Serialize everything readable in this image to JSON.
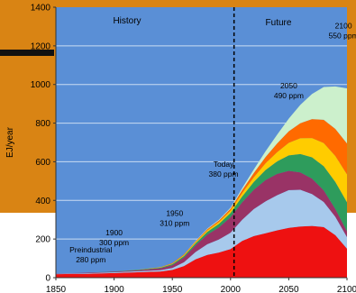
{
  "chart_data": {
    "type": "area",
    "ylabel": "EJ/year",
    "ylim": [
      0,
      1400
    ],
    "xlim": [
      1850,
      2100
    ],
    "x_ticks": [
      "1850",
      "1900",
      "1950",
      "2000",
      "2050",
      "2100"
    ],
    "y_ticks": [
      "0",
      "200",
      "400",
      "600",
      "800",
      "1000",
      "1200",
      "1400"
    ],
    "grid": true,
    "divider": 2003,
    "regions": [
      {
        "label": "History"
      },
      {
        "label": "Future"
      }
    ],
    "x": [
      1850,
      1875,
      1900,
      1920,
      1940,
      1950,
      1960,
      1970,
      1980,
      1990,
      2000,
      2010,
      2020,
      2030,
      2040,
      2050,
      2060,
      2070,
      2080,
      2090,
      2100
    ],
    "series": [
      {
        "color": "#ee1111",
        "values": [
          18,
          20,
          24,
          28,
          32,
          40,
          60,
          95,
          118,
          130,
          148,
          190,
          215,
          230,
          245,
          258,
          265,
          268,
          262,
          220,
          150
        ]
      },
      {
        "color": "#a7c9ec",
        "values": [
          2,
          3,
          4,
          5,
          7,
          10,
          20,
          38,
          55,
          68,
          85,
          110,
          140,
          165,
          182,
          195,
          190,
          165,
          130,
          95,
          60
        ]
      },
      {
        "color": "#993366",
        "values": [
          1,
          2,
          3,
          5,
          10,
          15,
          25,
          35,
          50,
          62,
          80,
          90,
          100,
          110,
          110,
          100,
          90,
          80,
          60,
          40,
          30
        ]
      },
      {
        "color": "#2e9c5c",
        "values": [
          0,
          0,
          1,
          2,
          3,
          5,
          7,
          10,
          14,
          18,
          22,
          30,
          40,
          52,
          65,
          80,
          95,
          110,
          125,
          140,
          150
        ]
      },
      {
        "color": "#ffcc00",
        "values": [
          0,
          0,
          0,
          1,
          2,
          3,
          5,
          6,
          8,
          10,
          12,
          18,
          25,
          35,
          48,
          65,
          82,
          100,
          120,
          135,
          145
        ]
      },
      {
        "color": "#ff6a00",
        "values": [
          0,
          0,
          0,
          0,
          1,
          2,
          3,
          4,
          6,
          8,
          10,
          15,
          22,
          32,
          45,
          60,
          78,
          98,
          120,
          140,
          160
        ]
      },
      {
        "color": "#ccf0cc",
        "values": [
          0,
          0,
          0,
          0,
          0,
          0,
          0,
          2,
          3,
          4,
          5,
          10,
          18,
          30,
          45,
          65,
          95,
          130,
          170,
          220,
          285
        ]
      }
    ],
    "annotations": [
      {
        "text_lines": [
          "Preindustrial",
          "280 ppm"
        ],
        "x": 1880,
        "y": 130
      },
      {
        "text_lines": [
          "1900",
          "300 ppm"
        ],
        "x": 1900,
        "y": 220
      },
      {
        "text_lines": [
          "1950",
          "310 ppm"
        ],
        "x": 1952,
        "y": 320
      },
      {
        "text_lines": [
          "Today",
          "380 ppm"
        ],
        "x": 1994,
        "y": 575
      },
      {
        "text_lines": [
          "2050",
          "490 ppm"
        ],
        "x": 2050,
        "y": 980
      },
      {
        "text_lines": [
          "2100",
          "550 ppm"
        ],
        "x": 2097,
        "y": 1290
      }
    ]
  }
}
